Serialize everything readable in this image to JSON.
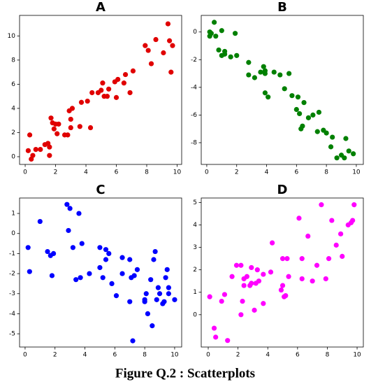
{
  "chart_data": [
    {
      "type": "scatter",
      "title": "A",
      "color": "#e00000",
      "x": [
        0.2,
        0.3,
        0.4,
        0.5,
        0.7,
        1.0,
        1.3,
        1.5,
        1.6,
        1.6,
        1.7,
        1.8,
        1.9,
        2.0,
        2.1,
        2.2,
        2.6,
        2.8,
        2.9,
        3.0,
        3.0,
        3.1,
        3.6,
        3.7,
        4.1,
        4.3,
        4.4,
        4.8,
        5.0,
        5.1,
        5.2,
        5.4,
        5.5,
        5.9,
        6.0,
        6.1,
        6.5,
        6.6,
        6.9,
        7.1,
        7.9,
        8.1,
        8.3,
        8.6,
        9.1,
        9.4,
        9.5,
        9.6,
        9.7
      ],
      "values": [
        0.5,
        1.8,
        -0.2,
        0.1,
        0.6,
        0.6,
        1.0,
        1.1,
        0.1,
        0.8,
        3.2,
        2.8,
        2.3,
        2.7,
        1.9,
        2.7,
        1.8,
        1.8,
        3.8,
        2.4,
        3.1,
        4.0,
        2.5,
        4.5,
        4.6,
        2.4,
        5.3,
        5.3,
        5.5,
        6.1,
        5.0,
        5.0,
        5.6,
        6.2,
        4.9,
        6.4,
        6.1,
        6.8,
        5.3,
        7.1,
        9.2,
        8.8,
        7.7,
        9.7,
        8.6,
        11.0,
        9.6,
        7.0,
        9.2
      ],
      "xlim": [
        -0.37,
        10.3
      ],
      "ylim": [
        -0.64,
        11.7
      ],
      "xticks": [
        0,
        2,
        4,
        6,
        8,
        10
      ],
      "yticks": [
        0,
        2,
        4,
        6,
        8,
        10
      ]
    },
    {
      "type": "scatter",
      "title": "B",
      "color": "#008000",
      "x": [
        0.2,
        0.2,
        0.3,
        0.5,
        0.6,
        0.8,
        1.0,
        1.0,
        1.2,
        1.2,
        1.6,
        1.9,
        2.0,
        2.8,
        2.8,
        3.2,
        3.6,
        3.8,
        3.9,
        3.9,
        3.9,
        4.1,
        4.5,
        4.9,
        5.2,
        5.5,
        5.7,
        6.0,
        6.1,
        6.2,
        6.3,
        6.4,
        6.5,
        6.8,
        7.1,
        7.4,
        7.5,
        7.8,
        8.0,
        8.3,
        8.4,
        8.7,
        9.0,
        9.2,
        9.3,
        9.5,
        9.8
      ],
      "values": [
        -0.3,
        0.0,
        -0.1,
        0.7,
        -0.3,
        -1.3,
        0.1,
        -1.7,
        -1.6,
        -1.4,
        -1.8,
        -0.1,
        -1.7,
        -2.2,
        -3.1,
        -3.3,
        -2.9,
        -2.5,
        -2.8,
        -3.0,
        -4.4,
        -4.7,
        -2.9,
        -3.1,
        -4.1,
        -3.0,
        -4.6,
        -5.6,
        -4.7,
        -5.9,
        -7.0,
        -6.8,
        -5.1,
        -6.2,
        -6.0,
        -7.2,
        -5.8,
        -7.1,
        -7.3,
        -8.3,
        -7.6,
        -9.1,
        -8.9,
        -9.1,
        -7.7,
        -8.6,
        -8.8
      ],
      "xlim": [
        -0.37,
        10.47
      ],
      "ylim": [
        -9.57,
        1.2
      ],
      "xticks": [
        0,
        2,
        4,
        6,
        8,
        10
      ],
      "yticks": [
        -8,
        -6,
        -4,
        -2,
        0
      ]
    },
    {
      "type": "scatter",
      "title": "C",
      "color": "#0000ff",
      "x": [
        0.2,
        0.3,
        1.0,
        1.5,
        1.7,
        1.8,
        1.9,
        2.8,
        2.9,
        3.0,
        3.2,
        3.4,
        3.6,
        3.7,
        3.8,
        4.3,
        5.0,
        5.0,
        5.2,
        5.4,
        5.4,
        5.6,
        5.8,
        6.1,
        6.5,
        6.5,
        7.0,
        7.0,
        7.1,
        7.2,
        7.3,
        7.5,
        8.0,
        8.0,
        8.1,
        8.2,
        8.4,
        8.5,
        8.6,
        8.7,
        8.8,
        8.9,
        9.0,
        9.2,
        9.3,
        9.4,
        9.5,
        9.6,
        9.6,
        10.0
      ],
      "values": [
        -0.7,
        -1.9,
        0.6,
        -0.9,
        -1.1,
        -2.1,
        -1.0,
        1.45,
        0.15,
        1.25,
        -0.7,
        -2.3,
        1.0,
        -2.2,
        -0.5,
        -2.0,
        -1.7,
        -0.7,
        -2.2,
        -0.8,
        -1.3,
        -1.0,
        -2.5,
        -3.1,
        -1.2,
        -2.0,
        -1.3,
        -3.4,
        -2.2,
        -5.35,
        -2.1,
        -1.8,
        -3.3,
        -3.4,
        -3.0,
        -4.0,
        -2.3,
        -4.6,
        -1.3,
        -0.9,
        -3.3,
        -2.7,
        -3.0,
        -3.5,
        -3.4,
        -2.2,
        -1.8,
        -2.7,
        -3.0,
        -3.3
      ],
      "xlim": [
        -0.37,
        10.47
      ],
      "ylim": [
        -5.66,
        1.77
      ],
      "xticks": [
        0,
        2,
        4,
        6,
        8,
        10
      ],
      "yticks": [
        -5,
        -4,
        -3,
        -2,
        -1,
        0,
        1
      ]
    },
    {
      "type": "scatter",
      "title": "D",
      "color": "#ff00ff",
      "x": [
        0.1,
        0.4,
        0.5,
        0.9,
        1.1,
        1.3,
        1.6,
        1.9,
        2.2,
        2.2,
        2.3,
        2.4,
        2.4,
        2.6,
        2.8,
        2.9,
        2.9,
        3.1,
        3.2,
        3.3,
        3.4,
        3.7,
        3.7,
        4.2,
        4.3,
        4.9,
        5.0,
        5.0,
        5.1,
        5.2,
        5.3,
        5.4,
        6.1,
        6.3,
        6.3,
        6.7,
        7.0,
        7.3,
        7.6,
        7.9,
        8.1,
        8.3,
        8.6,
        8.9,
        9.0,
        9.4,
        9.6,
        9.7,
        9.8
      ],
      "values": [
        0.8,
        -0.6,
        -1.0,
        0.6,
        0.9,
        -1.15,
        1.7,
        2.2,
        2.2,
        0.0,
        0.6,
        1.6,
        1.3,
        1.7,
        1.3,
        1.4,
        2.1,
        0.2,
        1.4,
        2.0,
        1.5,
        0.5,
        1.8,
        1.9,
        3.2,
        1.1,
        1.3,
        2.5,
        0.8,
        0.85,
        2.5,
        1.7,
        4.3,
        2.5,
        1.6,
        3.5,
        1.5,
        2.2,
        4.9,
        1.6,
        2.5,
        4.2,
        3.1,
        3.6,
        2.6,
        4.0,
        4.1,
        4.2,
        4.9
      ],
      "xlim": [
        -0.47,
        10.42
      ],
      "ylim": [
        -1.44,
        5.2
      ],
      "xticks": [
        0,
        2,
        4,
        6,
        8,
        10
      ],
      "yticks": [
        0,
        1,
        2,
        3,
        4,
        5
      ]
    }
  ],
  "caption": "Figure Q.2 :  Scatterplots"
}
